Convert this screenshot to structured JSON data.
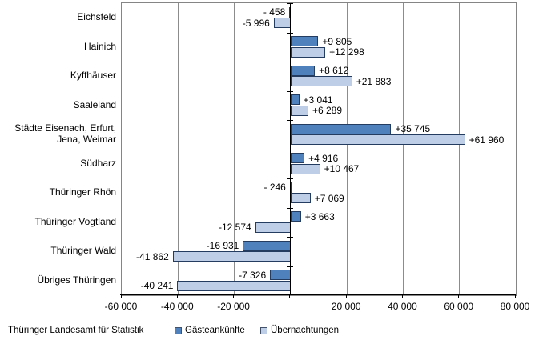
{
  "chart_data": {
    "type": "bar",
    "orientation": "horizontal",
    "title": "",
    "xlabel": "",
    "ylabel": "",
    "xlim": [
      -60000,
      80000
    ],
    "grid": true,
    "legend_position": "bottom",
    "categories": [
      "Eichsfeld",
      "Hainich",
      "Kyffhäuser",
      "Saaleland",
      "Städte Eisenach, Erfurt,\nJena, Weimar",
      "Südharz",
      "Thüringer Rhön",
      "Thüringer Vogtland",
      "Thüringer Wald",
      "Übriges Thüringen"
    ],
    "series": [
      {
        "name": "Gästeankünfte",
        "color": "#4F81BD",
        "border_color": "#253C61",
        "values": [
          -458,
          9805,
          8612,
          3041,
          35745,
          4916,
          -246,
          3663,
          -16931,
          -7326
        ],
        "labels": [
          "- 458",
          "+9 805",
          "+8 612",
          "+3 041",
          "+35 745",
          "+4 916",
          "- 246",
          "+3 663",
          "-16 931",
          "-7 326"
        ]
      },
      {
        "name": "Übernachtungen",
        "color": "#BDCEE6",
        "border_color": "#253C61",
        "values": [
          -5996,
          12298,
          21883,
          6289,
          61960,
          10467,
          7069,
          -12574,
          -41862,
          -40241
        ],
        "labels": [
          "-5 996",
          "+12 298",
          "+21 883",
          "+6 289",
          "+61 960",
          "+10 467",
          "+7 069",
          "-12 574",
          "-41 862",
          "-40 241"
        ]
      }
    ],
    "x_ticks": [
      {
        "value": -60000,
        "label": "-60 000"
      },
      {
        "value": -40000,
        "label": "-40 000"
      },
      {
        "value": -20000,
        "label": "-20 000"
      },
      {
        "value": 0,
        "label": ""
      },
      {
        "value": 20000,
        "label": "20 000"
      },
      {
        "value": 40000,
        "label": "40 000"
      },
      {
        "value": 60000,
        "label": "60 000"
      },
      {
        "value": 80000,
        "label": "80 000"
      }
    ],
    "gridline_values": [
      -40000,
      -20000,
      20000,
      40000,
      60000
    ]
  },
  "footer": {
    "source": "Thüringer Landesamt für Statistik"
  },
  "colors": {
    "grid": "#8c8c8c",
    "plot_border": "#858585",
    "axis": "#000000",
    "background": "#FFFFFF"
  }
}
